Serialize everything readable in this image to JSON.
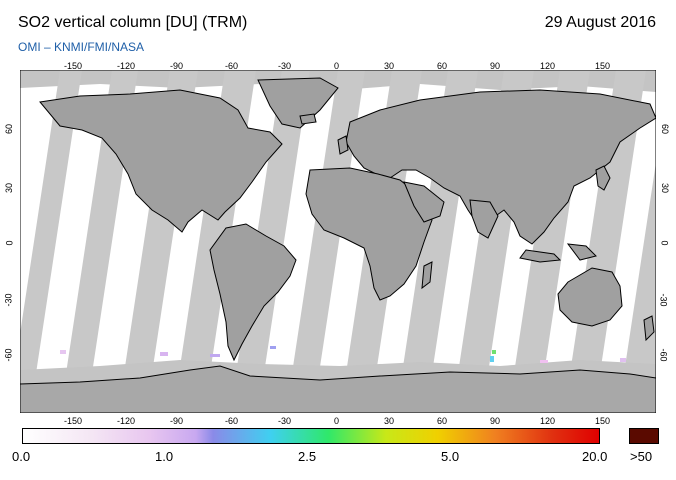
{
  "header": {
    "title": "SO2 vertical column [DU] (TRM)",
    "date": "29 August 2016",
    "credit": "OMI  –  KNMI/FMI/NASA"
  },
  "map": {
    "projection": "equirectangular",
    "lon_ticks": [
      "-150",
      "-120",
      "-90",
      "-60",
      "-30",
      "0",
      "30",
      "60",
      "90",
      "120",
      "150"
    ],
    "lat_ticks_left": [
      "60",
      "30",
      "0",
      "-30",
      "-60"
    ],
    "lat_ticks_right": [
      "60",
      "30",
      "0",
      "-30",
      "-60"
    ],
    "colors": {
      "no_data_swath": "#c8c8c8",
      "land_no_data": "#a0a0a0",
      "antarctica": "#a8a8a8",
      "arctic": "#c0c0c0",
      "coastline": "#000000"
    }
  },
  "colorbar": {
    "labels": [
      "0.0",
      "1.0",
      "2.5",
      "5.0",
      "20.0"
    ],
    "overflow_label": ">50",
    "overflow_color": "#5a0a00"
  }
}
